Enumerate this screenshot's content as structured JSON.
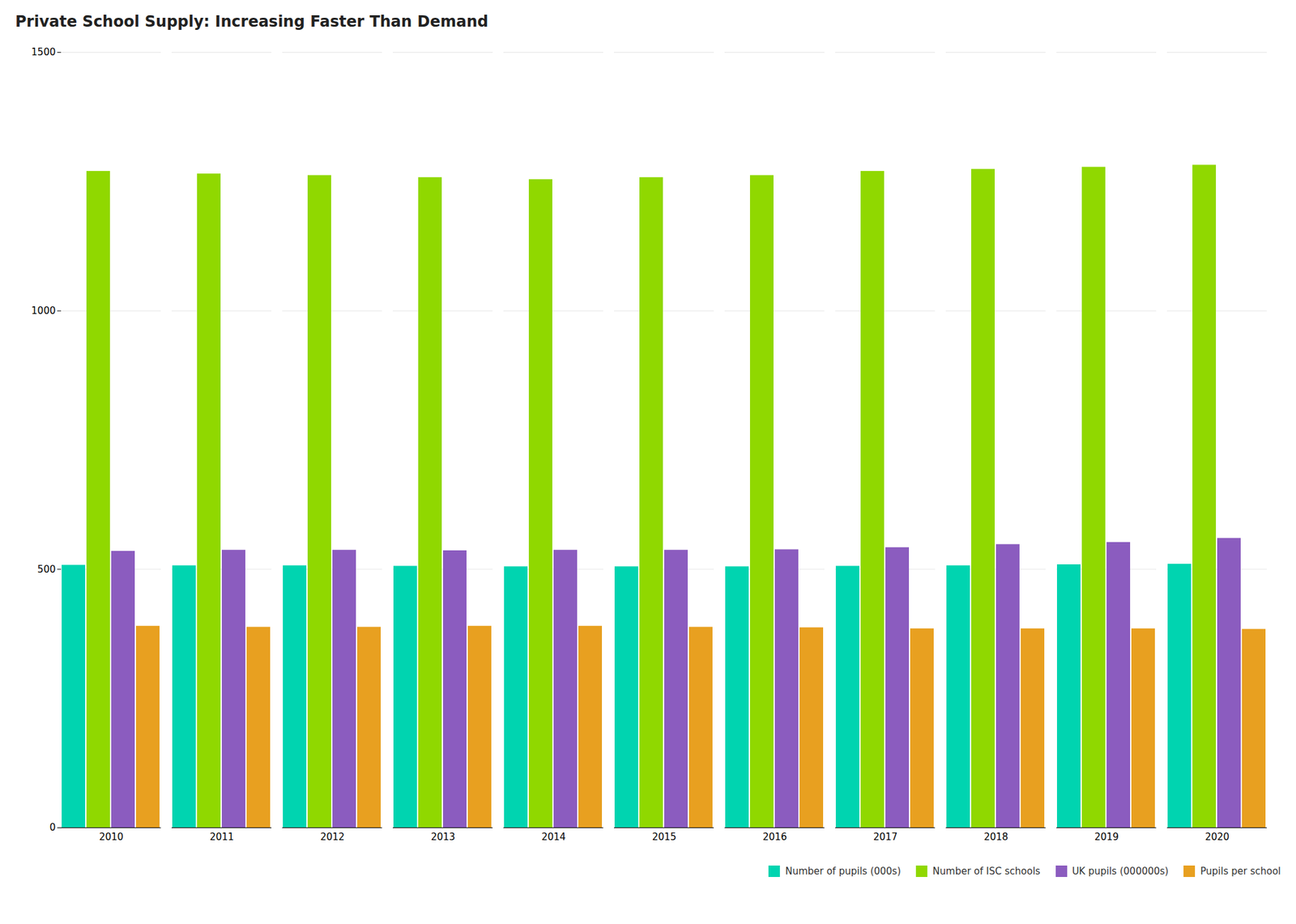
{
  "chart_data": {
    "type": "bar",
    "title": "Private School Supply: Increasing Faster Than Demand",
    "categories": [
      "2010",
      "2011",
      "2012",
      "2013",
      "2014",
      "2015",
      "2016",
      "2017",
      "2018",
      "2019",
      "2020"
    ],
    "series": [
      {
        "name": "Number of pupils (000s)",
        "color": "#00d4b0",
        "values": [
          508,
          507,
          507,
          506,
          505,
          505,
          505,
          506,
          507,
          509,
          510
        ]
      },
      {
        "name": "Number of ISC schools",
        "color": "#90d800",
        "values": [
          1270,
          1265,
          1262,
          1258,
          1254,
          1258,
          1262,
          1270,
          1274,
          1278,
          1282
        ]
      },
      {
        "name": "UK pupils (000000s)",
        "color": "#8b5cbf",
        "values": [
          535,
          537,
          537,
          536,
          537,
          537,
          538,
          542,
          548,
          552,
          560
        ]
      },
      {
        "name": "Pupils per school",
        "color": "#e8a020",
        "values": [
          390,
          388,
          388,
          390,
          390,
          388,
          387,
          385,
          385,
          385,
          384
        ]
      }
    ],
    "ylim": [
      0,
      1500
    ],
    "yticks": [
      0,
      500,
      1000,
      1500
    ],
    "grid": true,
    "legend": "bottom"
  }
}
